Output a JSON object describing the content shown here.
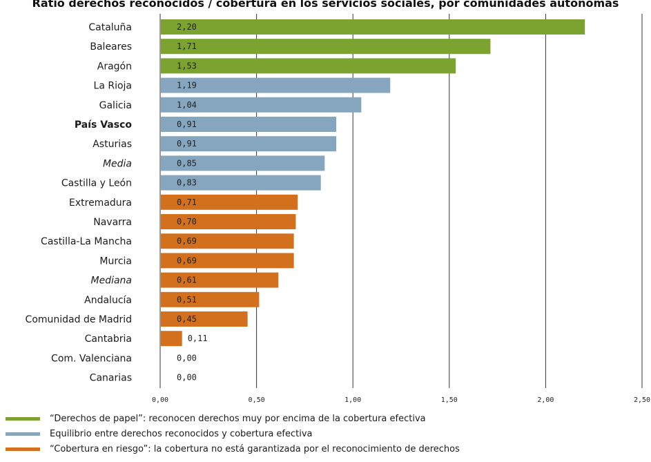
{
  "colors": {
    "papel": "#7ca22f",
    "equilibrio": "#86a6bf",
    "riesgo": "#d2701e",
    "gridline": "#333333"
  },
  "chart_data": {
    "type": "bar",
    "orientation": "horizontal",
    "title": "Ratio derechos reconocidos / cobertura en los servicios sociales, por comunidades autónomas",
    "categories": [
      "Cataluña",
      "Baleares",
      "Aragón",
      "La Rioja",
      "Galicia",
      "País Vasco",
      "Asturias",
      "Media",
      "Castilla y León",
      "Extremadura",
      "Navarra",
      "Castilla-La Mancha",
      "Murcia",
      "Mediana",
      "Andalucía",
      "Comunidad de Madrid",
      "Cantabria",
      "Com. Valenciana",
      "Canarias"
    ],
    "values": [
      2.2,
      1.71,
      1.53,
      1.19,
      1.04,
      0.91,
      0.91,
      0.85,
      0.83,
      0.71,
      0.7,
      0.69,
      0.69,
      0.61,
      0.51,
      0.45,
      0.11,
      0.0,
      0.0
    ],
    "value_labels": [
      "2,20",
      "1,71",
      "1,53",
      "1,19",
      "1,04",
      "0,91",
      "0,91",
      "0,85",
      "0,83",
      "0,71",
      "0,70",
      "0,69",
      "0,69",
      "0,61",
      "0,51",
      "0,45",
      "0,11",
      "0,00",
      "0,00"
    ],
    "groups": [
      "papel",
      "papel",
      "papel",
      "equilibrio",
      "equilibrio",
      "equilibrio",
      "equilibrio",
      "equilibrio",
      "equilibrio",
      "riesgo",
      "riesgo",
      "riesgo",
      "riesgo",
      "riesgo",
      "riesgo",
      "riesgo",
      "riesgo",
      "riesgo",
      "riesgo"
    ],
    "label_styles": [
      "normal",
      "normal",
      "normal",
      "normal",
      "normal",
      "bold",
      "normal",
      "italic",
      "normal",
      "normal",
      "normal",
      "normal",
      "normal",
      "italic",
      "normal",
      "normal",
      "normal",
      "normal",
      "normal"
    ],
    "xlim": [
      0,
      2.5
    ],
    "xticks": [
      0,
      0.5,
      1.0,
      1.5,
      2.0,
      2.5
    ],
    "xtick_labels": [
      "0,00",
      "0,50",
      "1,00",
      "1,50",
      "2,00",
      "2,50"
    ],
    "grid": "vertical",
    "legend_position": "bottom-left",
    "legend": [
      {
        "group": "papel",
        "label": "“Derechos de papel”: reconocen derechos muy por encima de la cobertura efectiva"
      },
      {
        "group": "equilibrio",
        "label": "Equilibrio entre derechos reconocidos y cobertura efectiva"
      },
      {
        "group": "riesgo",
        "label": "“Cobertura en riesgo”: la cobertura no está garantizada por el reconocimiento de derechos"
      }
    ]
  }
}
